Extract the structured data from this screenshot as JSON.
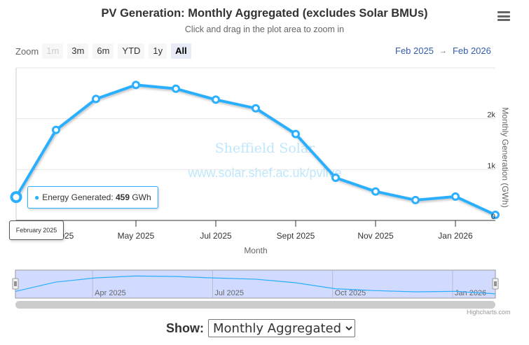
{
  "header": {
    "title": "PV Generation: Monthly Aggregated (excludes Solar BMUs)",
    "subtitle": "Click and drag in the plot area to zoom in",
    "menu_icon": "hamburger-menu-icon"
  },
  "range_selector": {
    "label": "Zoom",
    "buttons": [
      {
        "label": "1m",
        "state": "disabled"
      },
      {
        "label": "3m",
        "state": "normal"
      },
      {
        "label": "6m",
        "state": "normal"
      },
      {
        "label": "YTD",
        "state": "normal"
      },
      {
        "label": "1y",
        "state": "normal"
      },
      {
        "label": "All",
        "state": "active"
      }
    ],
    "from": "Feb 2025",
    "arrow": "→",
    "to": "Feb 2026"
  },
  "watermark": {
    "line1": "Sheffield Solar",
    "line2": "www.solar.shef.ac.uk/pvlive"
  },
  "tooltip": {
    "series_name": "Energy Generated: ",
    "value": "459",
    "unit": " GWh",
    "x_label": "February 2025"
  },
  "navigator": {
    "labels": [
      "Apr 2025",
      "Jul 2025",
      "Oct 2025",
      "Jan 2026"
    ]
  },
  "credits": "Highcharts.com",
  "controls": {
    "show_label": "Show:",
    "show_selected": "Monthly Aggregated"
  },
  "chart_data": {
    "type": "line",
    "title": "PV Generation: Monthly Aggregated (excludes Solar BMUs)",
    "xlabel": "Month",
    "ylabel": "Monthly Generation (GWh)",
    "x": [
      "Feb 2025",
      "Mar 2025",
      "Apr 2025",
      "May 2025",
      "Jun 2025",
      "Jul 2025",
      "Aug 2025",
      "Sept 2025",
      "Oct 2025",
      "Nov 2025",
      "Dec 2025",
      "Jan 2026",
      "Feb 2026"
    ],
    "series": [
      {
        "name": "Energy Generated",
        "color": "#2caffe",
        "values": [
          459,
          1780,
          2390,
          2665,
          2590,
          2375,
          2205,
          1700,
          840,
          570,
          400,
          470,
          110
        ]
      }
    ],
    "xticks": [
      "Mar 2025",
      "May 2025",
      "Jul 2025",
      "Sept 2025",
      "Nov 2025",
      "Jan 2026"
    ],
    "xtick_indices": [
      1,
      3,
      5,
      7,
      9,
      11
    ],
    "yticks": [
      0,
      1000,
      2000,
      3000
    ],
    "ytick_labels": [
      "0",
      "1k",
      "2k",
      ""
    ],
    "ylim": [
      0,
      3000
    ],
    "yaxis_side": "right",
    "grid": true,
    "legend": "none"
  }
}
